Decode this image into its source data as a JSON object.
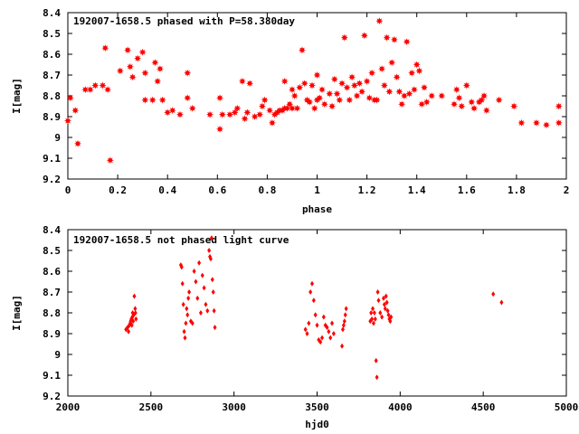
{
  "chart_data": [
    {
      "type": "scatter",
      "title": "192007-1658.5 phased with P=58.380day",
      "xlabel": "phase",
      "ylabel": "I[mag]",
      "xlim": [
        0,
        2
      ],
      "ylim": [
        9.2,
        8.4
      ],
      "y_inverted": true,
      "x_ticks": [
        0,
        0.2,
        0.4,
        0.6,
        0.8,
        1,
        1.2,
        1.4,
        1.6,
        1.8,
        2
      ],
      "x_tick_labels": [
        "0",
        "0.2",
        "0.4",
        "0.6",
        "0.8",
        "1",
        "1.2",
        "1.4",
        "1.6",
        "1.8",
        "2"
      ],
      "y_ticks": [
        8.4,
        8.5,
        8.6,
        8.7,
        8.8,
        8.9,
        9,
        9.1,
        9.2
      ],
      "y_tick_labels": [
        "8.4",
        "8.5",
        "8.6",
        "8.7",
        "8.8",
        "8.9",
        "9",
        "9.1",
        "9.2"
      ],
      "grid": false,
      "marker_color": "#ff0000",
      "marker": "star",
      "series": [
        {
          "points": [
            [
              0.0,
              8.92
            ],
            [
              0.01,
              8.81
            ],
            [
              0.03,
              8.87
            ],
            [
              0.04,
              9.03
            ],
            [
              0.07,
              8.77
            ],
            [
              0.09,
              8.77
            ],
            [
              0.11,
              8.75
            ],
            [
              0.14,
              8.75
            ],
            [
              0.15,
              8.57
            ],
            [
              0.16,
              8.77
            ],
            [
              0.17,
              9.11
            ],
            [
              0.21,
              8.68
            ],
            [
              0.24,
              8.58
            ],
            [
              0.25,
              8.66
            ],
            [
              0.26,
              8.71
            ],
            [
              0.28,
              8.62
            ],
            [
              0.3,
              8.59
            ],
            [
              0.31,
              8.69
            ],
            [
              0.31,
              8.82
            ],
            [
              0.34,
              8.82
            ],
            [
              0.35,
              8.64
            ],
            [
              0.36,
              8.73
            ],
            [
              0.37,
              8.67
            ],
            [
              0.38,
              8.82
            ],
            [
              0.4,
              8.88
            ],
            [
              0.42,
              8.87
            ],
            [
              0.45,
              8.89
            ],
            [
              0.48,
              8.69
            ],
            [
              0.48,
              8.81
            ],
            [
              0.5,
              8.86
            ],
            [
              0.57,
              8.89
            ],
            [
              0.61,
              8.96
            ],
            [
              0.61,
              8.81
            ],
            [
              0.62,
              8.89
            ],
            [
              0.65,
              8.89
            ],
            [
              0.67,
              8.88
            ],
            [
              0.68,
              8.86
            ],
            [
              0.7,
              8.73
            ],
            [
              0.71,
              8.91
            ],
            [
              0.72,
              8.88
            ],
            [
              0.73,
              8.74
            ],
            [
              0.75,
              8.9
            ],
            [
              0.77,
              8.89
            ],
            [
              0.78,
              8.85
            ],
            [
              0.79,
              8.82
            ],
            [
              0.81,
              8.87
            ],
            [
              0.82,
              8.93
            ],
            [
              0.83,
              8.89
            ],
            [
              0.84,
              8.88
            ],
            [
              0.85,
              8.87
            ],
            [
              0.86,
              8.87
            ],
            [
              0.87,
              8.86
            ],
            [
              0.87,
              8.73
            ],
            [
              0.88,
              8.86
            ],
            [
              0.89,
              8.84
            ],
            [
              0.9,
              8.86
            ],
            [
              0.9,
              8.77
            ],
            [
              0.91,
              8.8
            ],
            [
              0.92,
              8.86
            ],
            [
              0.93,
              8.76
            ],
            [
              0.94,
              8.58
            ],
            [
              0.95,
              8.74
            ],
            [
              0.96,
              8.82
            ],
            [
              0.97,
              8.83
            ],
            [
              0.98,
              8.75
            ],
            [
              0.99,
              8.86
            ],
            [
              1.0,
              8.82
            ],
            [
              1.0,
              8.7
            ],
            [
              1.01,
              8.81
            ],
            [
              1.02,
              8.77
            ],
            [
              1.03,
              8.84
            ],
            [
              1.05,
              8.79
            ],
            [
              1.06,
              8.85
            ],
            [
              1.07,
              8.72
            ],
            [
              1.08,
              8.79
            ],
            [
              1.09,
              8.82
            ],
            [
              1.1,
              8.74
            ],
            [
              1.11,
              8.52
            ],
            [
              1.12,
              8.76
            ],
            [
              1.13,
              8.82
            ],
            [
              1.14,
              8.71
            ],
            [
              1.15,
              8.75
            ],
            [
              1.16,
              8.8
            ],
            [
              1.17,
              8.74
            ],
            [
              1.18,
              8.78
            ],
            [
              1.19,
              8.51
            ],
            [
              1.2,
              8.73
            ],
            [
              1.21,
              8.81
            ],
            [
              1.22,
              8.69
            ],
            [
              1.23,
              8.82
            ],
            [
              1.24,
              8.82
            ],
            [
              1.25,
              8.44
            ],
            [
              1.26,
              8.67
            ],
            [
              1.27,
              8.75
            ],
            [
              1.28,
              8.52
            ],
            [
              1.29,
              8.78
            ],
            [
              1.3,
              8.64
            ],
            [
              1.31,
              8.53
            ],
            [
              1.32,
              8.71
            ],
            [
              1.33,
              8.78
            ],
            [
              1.34,
              8.84
            ],
            [
              1.35,
              8.8
            ],
            [
              1.36,
              8.54
            ],
            [
              1.37,
              8.79
            ],
            [
              1.38,
              8.69
            ],
            [
              1.39,
              8.77
            ],
            [
              1.4,
              8.65
            ],
            [
              1.41,
              8.68
            ],
            [
              1.42,
              8.84
            ],
            [
              1.43,
              8.76
            ],
            [
              1.44,
              8.83
            ],
            [
              1.46,
              8.8
            ],
            [
              1.5,
              8.8
            ],
            [
              1.55,
              8.84
            ],
            [
              1.56,
              8.77
            ],
            [
              1.57,
              8.81
            ],
            [
              1.58,
              8.85
            ],
            [
              1.6,
              8.75
            ],
            [
              1.62,
              8.83
            ],
            [
              1.63,
              8.86
            ],
            [
              1.65,
              8.83
            ],
            [
              1.66,
              8.82
            ],
            [
              1.67,
              8.8
            ],
            [
              1.68,
              8.87
            ],
            [
              1.73,
              8.82
            ],
            [
              1.79,
              8.85
            ],
            [
              1.82,
              8.93
            ],
            [
              1.88,
              8.93
            ],
            [
              1.92,
              8.94
            ],
            [
              1.97,
              8.85
            ],
            [
              1.97,
              8.93
            ]
          ]
        }
      ]
    },
    {
      "type": "scatter",
      "title": "192007-1658.5 not phased light curve",
      "xlabel": "hjd0",
      "ylabel": "I[mag]",
      "xlim": [
        2000,
        5000
      ],
      "ylim": [
        9.2,
        8.4
      ],
      "y_inverted": true,
      "x_ticks": [
        2000,
        2500,
        3000,
        3500,
        4000,
        4500,
        5000
      ],
      "x_tick_labels": [
        "2000",
        "2500",
        "3000",
        "3500",
        "4000",
        "4500",
        "5000"
      ],
      "y_ticks": [
        8.4,
        8.5,
        8.6,
        8.7,
        8.8,
        8.9,
        9,
        9.1,
        9.2
      ],
      "y_tick_labels": [
        "8.4",
        "8.5",
        "8.6",
        "8.7",
        "8.8",
        "8.9",
        "9",
        "9.1",
        "9.2"
      ],
      "grid": false,
      "marker_color": "#ff0000",
      "marker": "diamond",
      "series": [
        {
          "points": [
            [
              2350,
              8.88
            ],
            [
              2360,
              8.87
            ],
            [
              2365,
              8.89
            ],
            [
              2370,
              8.86
            ],
            [
              2375,
              8.85
            ],
            [
              2378,
              8.84
            ],
            [
              2382,
              8.83
            ],
            [
              2385,
              8.86
            ],
            [
              2388,
              8.82
            ],
            [
              2390,
              8.8
            ],
            [
              2393,
              8.84
            ],
            [
              2396,
              8.81
            ],
            [
              2400,
              8.72
            ],
            [
              2405,
              8.78
            ],
            [
              2407,
              8.8
            ],
            [
              2410,
              8.83
            ],
            [
              2680,
              8.57
            ],
            [
              2685,
              8.58
            ],
            [
              2690,
              8.66
            ],
            [
              2695,
              8.76
            ],
            [
              2700,
              8.89
            ],
            [
              2705,
              8.92
            ],
            [
              2710,
              8.85
            ],
            [
              2715,
              8.78
            ],
            [
              2720,
              8.81
            ],
            [
              2725,
              8.73
            ],
            [
              2730,
              8.7
            ],
            [
              2740,
              8.84
            ],
            [
              2750,
              8.85
            ],
            [
              2760,
              8.6
            ],
            [
              2770,
              8.65
            ],
            [
              2780,
              8.73
            ],
            [
              2790,
              8.56
            ],
            [
              2800,
              8.8
            ],
            [
              2810,
              8.62
            ],
            [
              2820,
              8.68
            ],
            [
              2830,
              8.76
            ],
            [
              2840,
              8.79
            ],
            [
              2850,
              8.5
            ],
            [
              2855,
              8.53
            ],
            [
              2860,
              8.54
            ],
            [
              2865,
              8.44
            ],
            [
              2870,
              8.64
            ],
            [
              2875,
              8.7
            ],
            [
              2880,
              8.79
            ],
            [
              2885,
              8.87
            ],
            [
              3430,
              8.88
            ],
            [
              3440,
              8.9
            ],
            [
              3450,
              8.85
            ],
            [
              3460,
              8.7
            ],
            [
              3470,
              8.66
            ],
            [
              3480,
              8.74
            ],
            [
              3490,
              8.81
            ],
            [
              3500,
              8.86
            ],
            [
              3510,
              8.93
            ],
            [
              3520,
              8.94
            ],
            [
              3530,
              8.92
            ],
            [
              3540,
              8.82
            ],
            [
              3550,
              8.86
            ],
            [
              3560,
              8.87
            ],
            [
              3570,
              8.89
            ],
            [
              3580,
              8.92
            ],
            [
              3590,
              8.85
            ],
            [
              3600,
              8.9
            ],
            [
              3650,
              8.96
            ],
            [
              3655,
              8.88
            ],
            [
              3660,
              8.86
            ],
            [
              3665,
              8.84
            ],
            [
              3670,
              8.81
            ],
            [
              3675,
              8.78
            ],
            [
              3820,
              8.84
            ],
            [
              3825,
              8.8
            ],
            [
              3830,
              8.83
            ],
            [
              3835,
              8.78
            ],
            [
              3840,
              8.85
            ],
            [
              3845,
              8.8
            ],
            [
              3850,
              8.83
            ],
            [
              3855,
              9.03
            ],
            [
              3860,
              9.11
            ],
            [
              3865,
              8.7
            ],
            [
              3870,
              8.74
            ],
            [
              3880,
              8.8
            ],
            [
              3890,
              8.82
            ],
            [
              3900,
              8.73
            ],
            [
              3905,
              8.76
            ],
            [
              3910,
              8.78
            ],
            [
              3915,
              8.72
            ],
            [
              3920,
              8.75
            ],
            [
              3925,
              8.79
            ],
            [
              3930,
              8.81
            ],
            [
              3935,
              8.83
            ],
            [
              3940,
              8.84
            ],
            [
              3945,
              8.82
            ],
            [
              4560,
              8.71
            ],
            [
              4610,
              8.75
            ]
          ]
        }
      ]
    }
  ]
}
